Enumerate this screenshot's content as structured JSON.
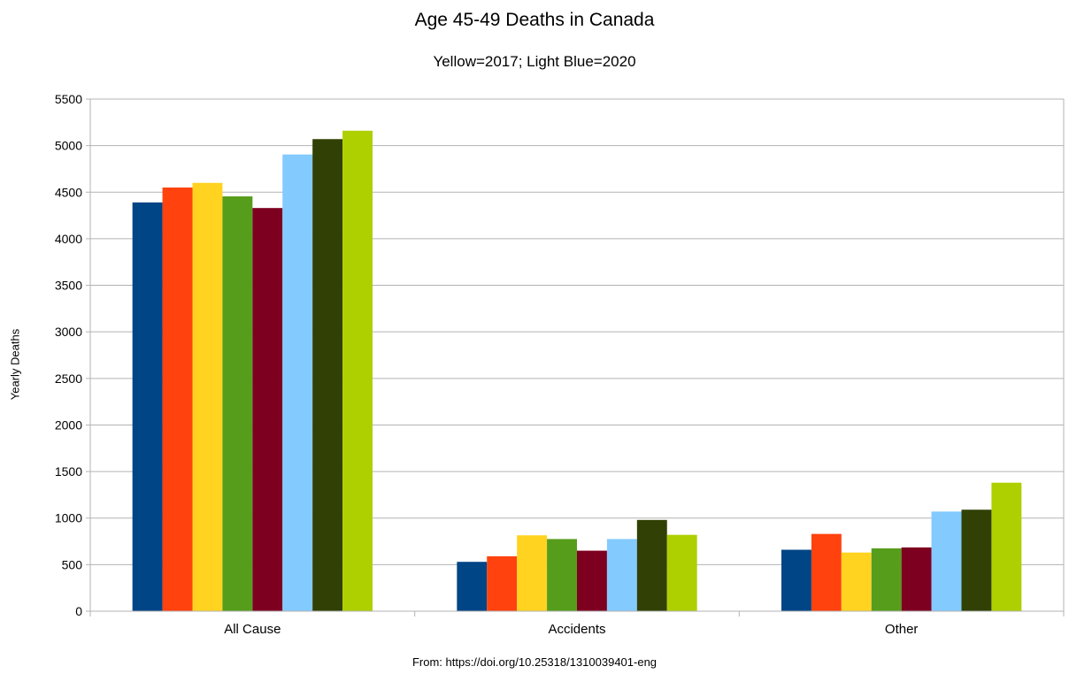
{
  "chart_data": {
    "type": "bar",
    "title": "Age 45-49 Deaths in Canada",
    "subtitle": "Yellow=2017; Light Blue=2020",
    "xlabel": "",
    "ylabel": "Yearly Deaths",
    "source": "From: https://doi.org/10.25318/1310039401-eng",
    "categories": [
      "All Cause",
      "Accidents",
      "Other"
    ],
    "ylim": [
      0,
      5500
    ],
    "yticks": [
      0,
      500,
      1000,
      1500,
      2000,
      2500,
      3000,
      3500,
      4000,
      4500,
      5000,
      5500
    ],
    "grid": true,
    "legend": "none",
    "series": [
      {
        "color": "#004586",
        "values": [
          4390,
          530,
          660
        ]
      },
      {
        "color": "#ff420e",
        "values": [
          4550,
          590,
          830
        ]
      },
      {
        "color": "#ffd320",
        "values": [
          4600,
          815,
          630
        ]
      },
      {
        "color": "#579d1c",
        "values": [
          4455,
          775,
          675
        ]
      },
      {
        "color": "#7e0021",
        "values": [
          4330,
          650,
          685
        ]
      },
      {
        "color": "#83caff",
        "values": [
          4905,
          775,
          1070
        ]
      },
      {
        "color": "#314004",
        "values": [
          5070,
          980,
          1090
        ]
      },
      {
        "color": "#aecf00",
        "values": [
          5160,
          820,
          1380
        ]
      }
    ]
  }
}
